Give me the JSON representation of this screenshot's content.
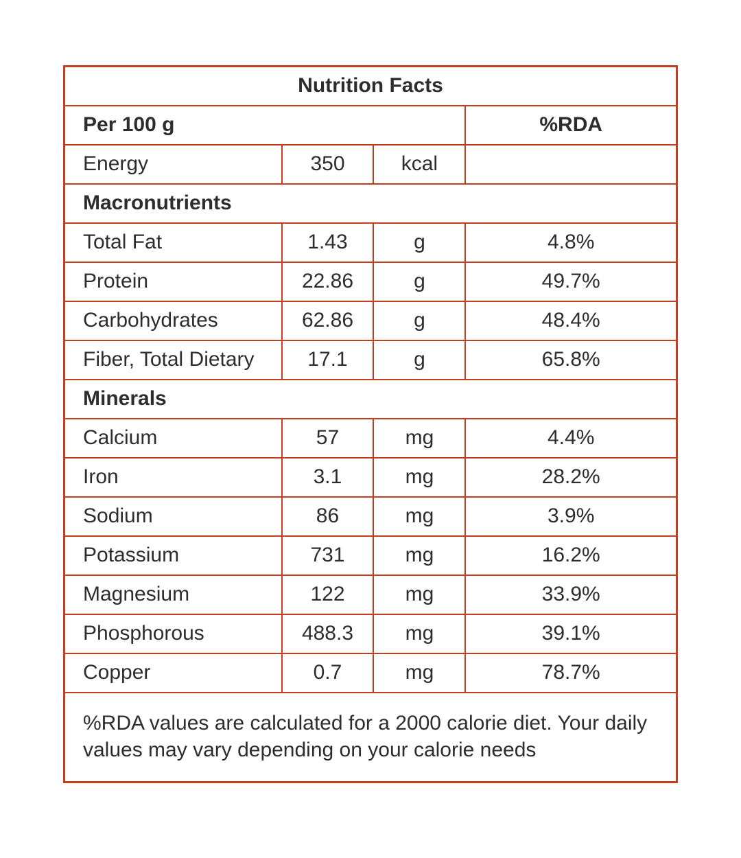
{
  "title": "Nutrition Facts",
  "header": {
    "serving_label": "Per 100 g",
    "rda_label": "%RDA"
  },
  "energy": {
    "label": "Energy",
    "value": "350",
    "unit": "kcal",
    "rda": ""
  },
  "sections": [
    {
      "name": "Macronutrients",
      "rows": [
        {
          "label": "Total Fat",
          "value": "1.43",
          "unit": "g",
          "rda": "4.8%"
        },
        {
          "label": "Protein",
          "value": "22.86",
          "unit": "g",
          "rda": "49.7%"
        },
        {
          "label": "Carbohydrates",
          "value": "62.86",
          "unit": "g",
          "rda": "48.4%"
        },
        {
          "label": "Fiber, Total Dietary",
          "value": "17.1",
          "unit": "g",
          "rda": "65.8%"
        }
      ]
    },
    {
      "name": "Minerals",
      "rows": [
        {
          "label": "Calcium",
          "value": "57",
          "unit": "mg",
          "rda": "4.4%"
        },
        {
          "label": "Iron",
          "value": "3.1",
          "unit": "mg",
          "rda": "28.2%"
        },
        {
          "label": "Sodium",
          "value": "86",
          "unit": "mg",
          "rda": "3.9%"
        },
        {
          "label": "Potassium",
          "value": "731",
          "unit": "mg",
          "rda": "16.2%"
        },
        {
          "label": "Magnesium",
          "value": "122",
          "unit": "mg",
          "rda": "33.9%"
        },
        {
          "label": "Phosphorous",
          "value": "488.3",
          "unit": "mg",
          "rda": "39.1%"
        },
        {
          "label": "Copper",
          "value": "0.7",
          "unit": "mg",
          "rda": "78.7%"
        }
      ]
    }
  ],
  "footnote": "%RDA values are calculated for a 2000 calorie diet. Your daily values may vary depending on your calorie needs",
  "colors": {
    "border": "#c43e20",
    "text": "#2d2d2d",
    "background": "#ffffff"
  }
}
